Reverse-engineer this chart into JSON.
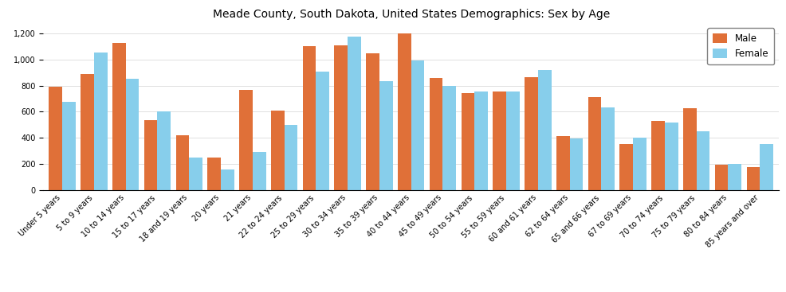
{
  "title": "Meade County, South Dakota, United States Demographics: Sex by Age",
  "categories": [
    "Under 5 years",
    "5 to 9 years",
    "10 to 14 years",
    "15 to 17 years",
    "18 and 19 years",
    "20 years",
    "21 years",
    "22 to 24 years",
    "25 to 29 years",
    "30 to 34 years",
    "35 to 39 years",
    "40 to 44 years",
    "45 to 49 years",
    "50 to 54 years",
    "55 to 59 years",
    "60 and 61 years",
    "62 to 64 years",
    "65 and 66 years",
    "67 to 69 years",
    "70 to 74 years",
    "75 to 79 years",
    "80 to 84 years",
    "85 years and over"
  ],
  "male": [
    795,
    893,
    1127,
    534,
    418,
    246,
    768,
    607,
    1105,
    1108,
    1052,
    1201,
    862,
    745,
    757,
    868,
    413,
    713,
    350,
    530,
    626,
    190,
    175
  ],
  "female": [
    678,
    1057,
    853,
    601,
    248,
    158,
    291,
    498,
    907,
    1177,
    836,
    997,
    799,
    757,
    756,
    921,
    397,
    634,
    401,
    517,
    451,
    201,
    353
  ],
  "male_color": "#E07038",
  "female_color": "#87CEEB",
  "bar_width": 0.42,
  "ylim": [
    0,
    1280
  ],
  "yticks": [
    0,
    200,
    400,
    600,
    800,
    1000,
    1200
  ],
  "legend_labels": [
    "Male",
    "Female"
  ],
  "title_fontsize": 10,
  "tick_fontsize": 7,
  "legend_fontsize": 8.5
}
